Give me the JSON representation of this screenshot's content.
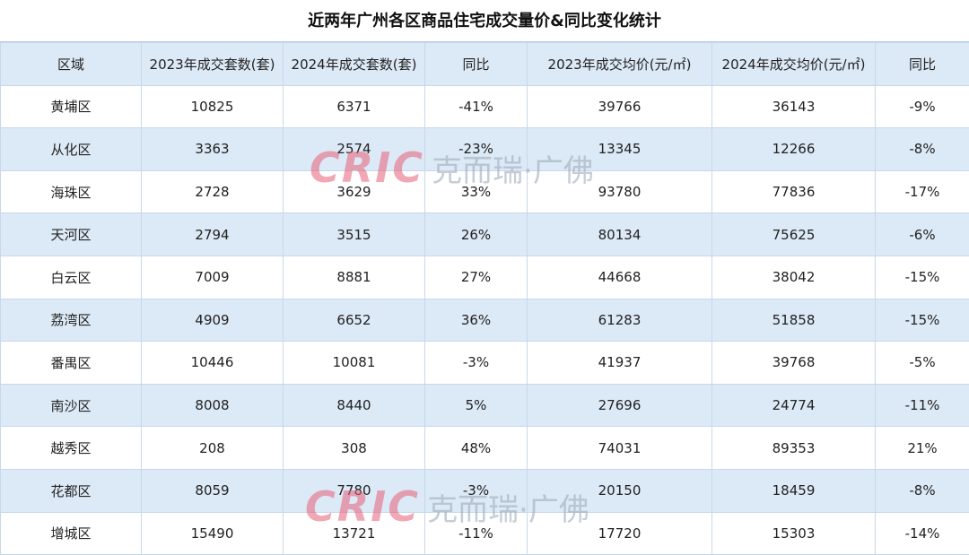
{
  "title": "近两年广州各区商品住宅成交量价&同比变化统计",
  "table": {
    "header": [
      "区域",
      "2023年成交套数(套)",
      "2024年成交套数(套)",
      "同比",
      "2023年成交均价(元/㎡)",
      "2024年成交均价(元/㎡)",
      "同比"
    ],
    "rows": [
      [
        "黄埔区",
        "10825",
        "6371",
        "-41%",
        "39766",
        "36143",
        "-9%"
      ],
      [
        "从化区",
        "3363",
        "2574",
        "-23%",
        "13345",
        "12266",
        "-8%"
      ],
      [
        "海珠区",
        "2728",
        "3629",
        "33%",
        "93780",
        "77836",
        "-17%"
      ],
      [
        "天河区",
        "2794",
        "3515",
        "26%",
        "80134",
        "75625",
        "-6%"
      ],
      [
        "白云区",
        "7009",
        "8881",
        "27%",
        "44668",
        "38042",
        "-15%"
      ],
      [
        "荔湾区",
        "4909",
        "6652",
        "36%",
        "61283",
        "51858",
        "-15%"
      ],
      [
        "番禺区",
        "10446",
        "10081",
        "-3%",
        "41937",
        "39768",
        "-5%"
      ],
      [
        "南沙区",
        "8008",
        "8440",
        "5%",
        "27696",
        "24774",
        "-11%"
      ],
      [
        "越秀区",
        "208",
        "308",
        "48%",
        "74031",
        "89353",
        "21%"
      ],
      [
        "花都区",
        "8059",
        "7780",
        "-3%",
        "20150",
        "18459",
        "-8%"
      ],
      [
        "增城区",
        "15490",
        "13721",
        "-11%",
        "17720",
        "15303",
        "-14%"
      ]
    ]
  },
  "watermark": {
    "logo": "CRIC",
    "text": "克而瑞·广佛"
  }
}
